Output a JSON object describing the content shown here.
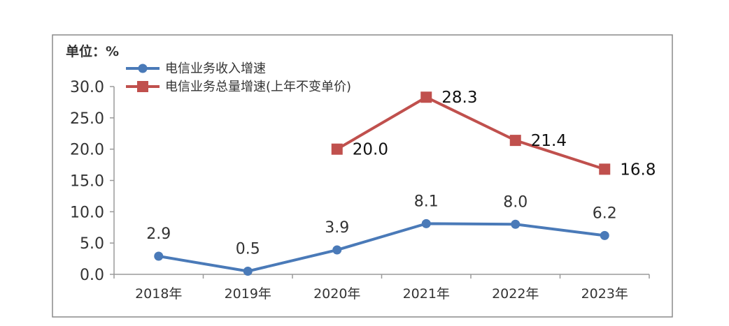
{
  "chart_data": {
    "type": "line",
    "unit_label": "单位：%",
    "categories": [
      "2018年",
      "2019年",
      "2020年",
      "2021年",
      "2022年",
      "2023年"
    ],
    "ylim": [
      0,
      30
    ],
    "yticks": [
      "0.0",
      "5.0",
      "10.0",
      "15.0",
      "20.0",
      "25.0",
      "30.0"
    ],
    "legend_position": "top-left",
    "series": [
      {
        "name": "电信业务收入增速",
        "color": "#4a7ab8",
        "marker": "circle",
        "values": [
          2.9,
          0.5,
          3.9,
          8.1,
          8.0,
          6.2
        ],
        "labels": [
          "2.9",
          "0.5",
          "3.9",
          "8.1",
          "8.0",
          "6.2"
        ]
      },
      {
        "name": "电信业务总量增速(上年不变单价)",
        "color": "#c0504d",
        "marker": "square",
        "values": [
          null,
          null,
          20.0,
          28.3,
          21.4,
          16.8
        ],
        "labels": [
          "",
          "",
          "20.0",
          "28.3",
          "21.4",
          "16.8"
        ]
      }
    ]
  }
}
